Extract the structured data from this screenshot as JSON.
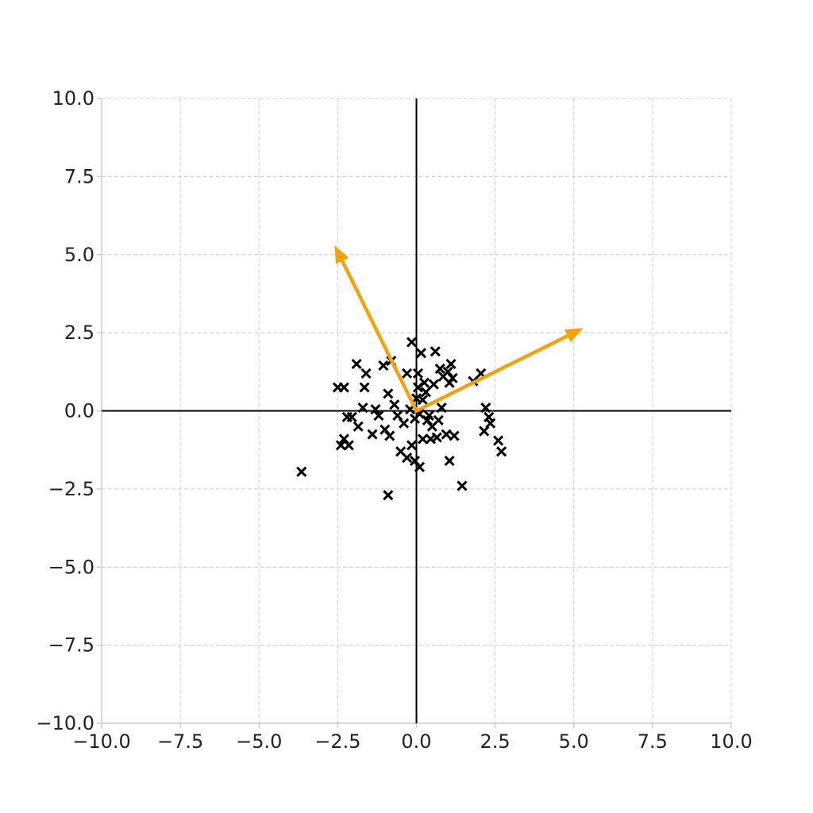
{
  "chart_data": {
    "type": "scatter",
    "xlim": [
      -10,
      10
    ],
    "ylim": [
      -10,
      10
    ],
    "grid": true,
    "xticks": [
      "−10.0",
      "−7.5",
      "−5.0",
      "−2.5",
      "0.0",
      "2.5",
      "5.0",
      "7.5",
      "10.0"
    ],
    "yticks": [
      "10.0",
      "7.5",
      "5.0",
      "2.5",
      "0.0",
      "−2.5",
      "−5.0",
      "−7.5",
      "−10.0"
    ],
    "xtick_values": [
      -10,
      -7.5,
      -5,
      -2.5,
      0,
      2.5,
      5,
      7.5,
      10
    ],
    "ytick_values": [
      10,
      7.5,
      5,
      2.5,
      0,
      -2.5,
      -5,
      -7.5,
      -10
    ],
    "marker": "x",
    "marker_color": "#000000",
    "points": [
      [
        -3.65,
        -1.95
      ],
      [
        -2.5,
        0.75
      ],
      [
        -2.3,
        0.75
      ],
      [
        -2.4,
        -1.1
      ],
      [
        -2.3,
        -0.9
      ],
      [
        -2.15,
        -1.1
      ],
      [
        -2.05,
        -0.2
      ],
      [
        -2.2,
        -0.2
      ],
      [
        -1.9,
        1.5
      ],
      [
        -1.6,
        1.2
      ],
      [
        -1.65,
        0.75
      ],
      [
        -1.7,
        0.1
      ],
      [
        -1.85,
        -0.5
      ],
      [
        -1.4,
        -0.75
      ],
      [
        -1.3,
        0.05
      ],
      [
        -1.2,
        -0.15
      ],
      [
        -1.05,
        1.45
      ],
      [
        -1.0,
        -0.6
      ],
      [
        -0.9,
        0.55
      ],
      [
        -0.8,
        1.6
      ],
      [
        -0.85,
        -0.8
      ],
      [
        -0.7,
        0.2
      ],
      [
        -0.6,
        -0.15
      ],
      [
        -0.5,
        -1.3
      ],
      [
        -0.4,
        -0.4
      ],
      [
        -0.3,
        -1.5
      ],
      [
        -0.3,
        1.2
      ],
      [
        -0.2,
        0.05
      ],
      [
        -0.15,
        2.2
      ],
      [
        -0.15,
        -1.1
      ],
      [
        -0.05,
        -1.6
      ],
      [
        0.05,
        1.2
      ],
      [
        0.05,
        0.75
      ],
      [
        0.1,
        -0.1
      ],
      [
        0.1,
        -1.8
      ],
      [
        0.15,
        1.85
      ],
      [
        0.2,
        -0.9
      ],
      [
        0.25,
        0.9
      ],
      [
        0.3,
        0.6
      ],
      [
        0.35,
        -0.3
      ],
      [
        0.45,
        -0.9
      ],
      [
        0.5,
        -0.5
      ],
      [
        0.55,
        0.85
      ],
      [
        0.6,
        1.9
      ],
      [
        0.65,
        -0.85
      ],
      [
        0.7,
        -0.3
      ],
      [
        0.75,
        1.35
      ],
      [
        0.8,
        0.1
      ],
      [
        0.85,
        1.1
      ],
      [
        0.95,
        -0.75
      ],
      [
        1.0,
        1.25
      ],
      [
        1.05,
        0.9
      ],
      [
        1.1,
        1.5
      ],
      [
        1.15,
        1.05
      ],
      [
        1.2,
        -0.8
      ],
      [
        1.05,
        -1.6
      ],
      [
        1.45,
        -2.4
      ],
      [
        -0.9,
        -2.7
      ],
      [
        1.8,
        0.95
      ],
      [
        2.05,
        1.2
      ],
      [
        2.15,
        -0.65
      ],
      [
        2.2,
        0.1
      ],
      [
        2.3,
        -0.2
      ],
      [
        2.35,
        -0.4
      ],
      [
        2.6,
        -0.95
      ],
      [
        2.7,
        -1.3
      ],
      [
        0.0,
        0.4
      ],
      [
        -0.05,
        -0.25
      ],
      [
        0.4,
        -0.15
      ],
      [
        0.2,
        0.35
      ]
    ],
    "vectors": [
      {
        "x": 5.3,
        "y": 2.65,
        "color": "#f5a00f"
      },
      {
        "x": -2.6,
        "y": 5.3,
        "color": "#f5a00f"
      }
    ]
  }
}
